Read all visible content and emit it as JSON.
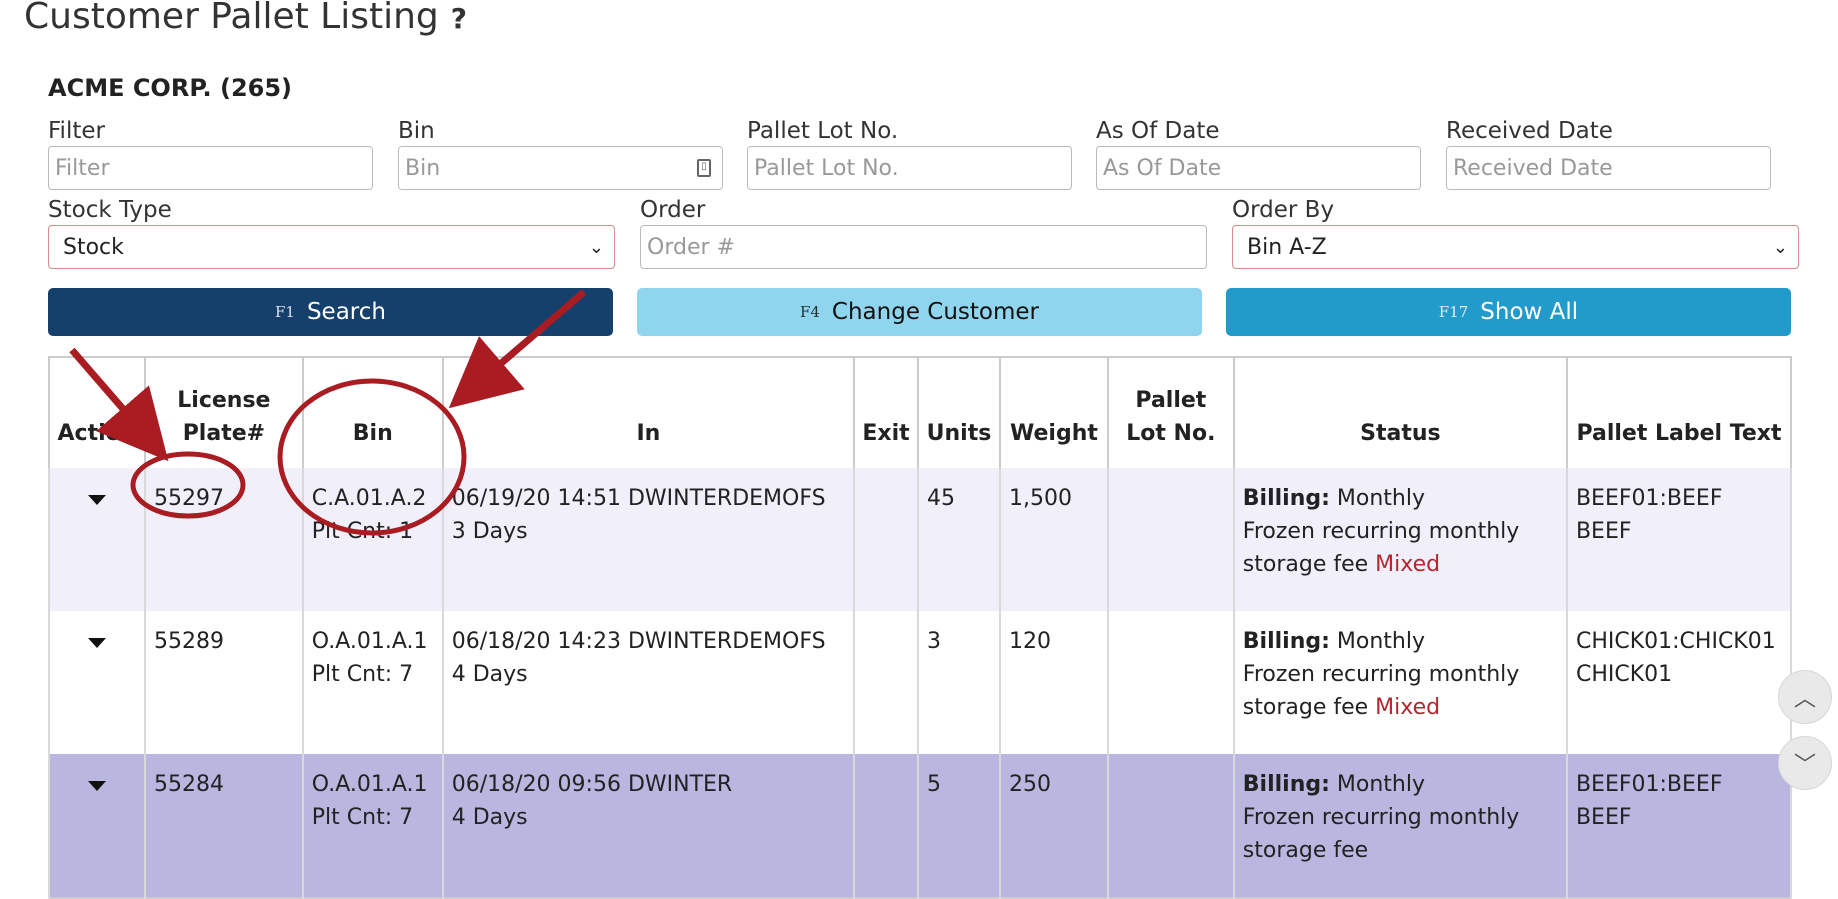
{
  "page": {
    "title": "Customer Pallet Listing",
    "help": "?"
  },
  "customer": "ACME CORP. (265)",
  "filters": {
    "filter": {
      "label": "Filter",
      "placeholder": "Filter"
    },
    "bin": {
      "label": "Bin",
      "placeholder": "Bin"
    },
    "lot": {
      "label": "Pallet Lot No.",
      "placeholder": "Pallet Lot No."
    },
    "asof": {
      "label": "As Of Date",
      "placeholder": "As Of Date"
    },
    "received": {
      "label": "Received Date",
      "placeholder": "Received Date"
    },
    "stock_type": {
      "label": "Stock Type",
      "value": "Stock"
    },
    "order": {
      "label": "Order",
      "placeholder": "Order #"
    },
    "order_by": {
      "label": "Order By",
      "value": "Bin A-Z"
    }
  },
  "buttons": {
    "search": {
      "key": "F1",
      "label": "Search"
    },
    "change": {
      "key": "F4",
      "label": "Change Customer"
    },
    "showall": {
      "key": "F17",
      "label": "Show All"
    }
  },
  "table": {
    "headers": {
      "action": "Action",
      "plate1": "License",
      "plate2": "Plate#",
      "bin": "Bin",
      "in": "In",
      "exit": "Exit",
      "units": "Units",
      "weight": "Weight",
      "lot1": "Pallet",
      "lot2": "Lot No.",
      "status": "Status",
      "label": "Pallet Label Text"
    },
    "rows": [
      {
        "plate": "55297",
        "bin": "C.A.01.A.2",
        "pltcnt": "Plt Cnt: 1",
        "in_line": "06/19/20 14:51 DWINTERDEMOFS",
        "days": "3 Days",
        "exit": "",
        "units": "45",
        "weight": "1,500",
        "lot": "",
        "billing_label": "Billing:",
        "billing": "Monthly",
        "status1": "Frozen recurring monthly",
        "status2": "storage fee",
        "mixed": "Mixed",
        "label1": "BEEF01:BEEF",
        "label2": "BEEF"
      },
      {
        "plate": "55289",
        "bin": "O.A.01.A.1",
        "pltcnt": "Plt Cnt: 7",
        "in_line": "06/18/20 14:23 DWINTERDEMOFS",
        "days": "4 Days",
        "exit": "",
        "units": "3",
        "weight": "120",
        "lot": "",
        "billing_label": "Billing:",
        "billing": "Monthly",
        "status1": "Frozen recurring monthly",
        "status2": "storage fee",
        "mixed": "Mixed",
        "label1": "CHICK01:CHICK01",
        "label2": "CHICK01"
      },
      {
        "plate": "55284",
        "bin": "O.A.01.A.1",
        "pltcnt": "Plt Cnt: 7",
        "in_line": "06/18/20 09:56 DWINTER",
        "days": "4 Days",
        "exit": "",
        "units": "5",
        "weight": "250",
        "lot": "",
        "billing_label": "Billing:",
        "billing": "Monthly",
        "status1": "Frozen recurring monthly",
        "status2": "storage fee",
        "mixed": "",
        "label1": "BEEF01:BEEF",
        "label2": "BEEF"
      }
    ]
  },
  "colors": {
    "annotation": "#a81c22",
    "search_btn": "#15406b",
    "change_btn": "#8fd5ee",
    "showall_btn": "#229bcb"
  },
  "icons": {
    "scroll_up": "chevron-up-icon",
    "scroll_down": "chevron-down-icon",
    "row_action": "caret-down-icon"
  }
}
